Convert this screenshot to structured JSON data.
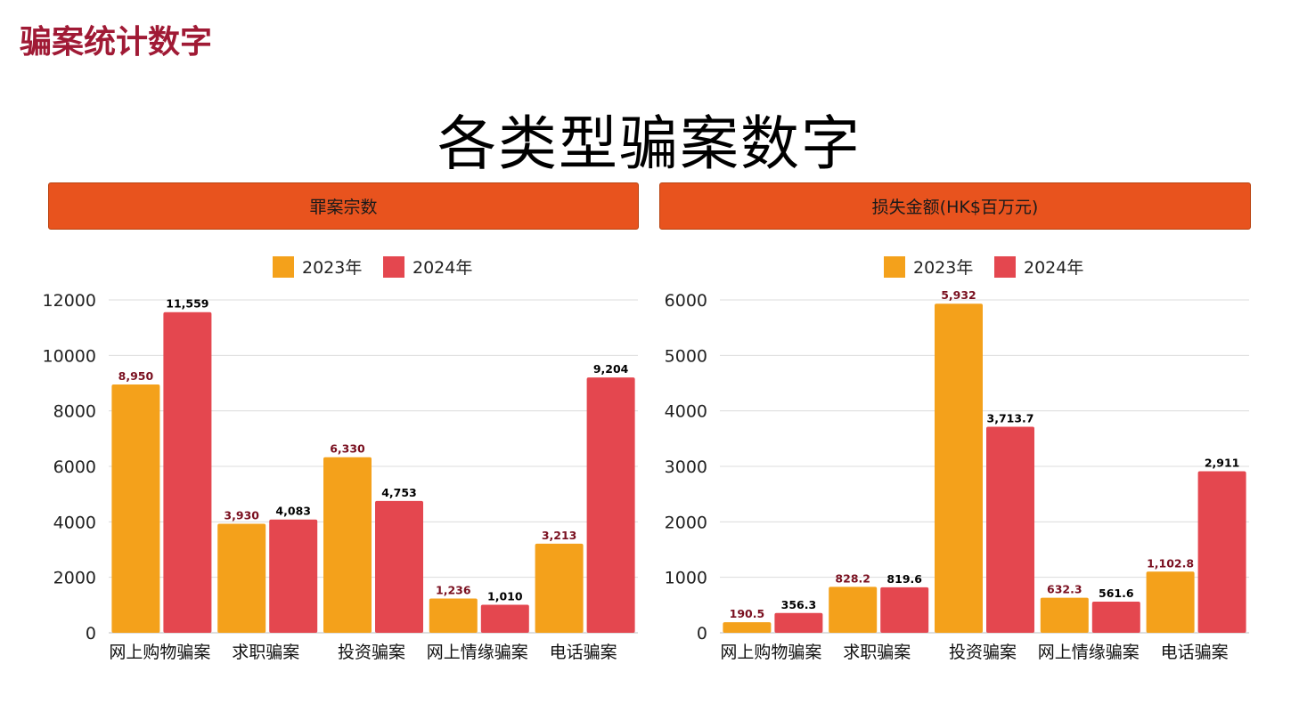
{
  "page": {
    "section_title": "骗案统计数字",
    "main_title": "各类型骗案数字"
  },
  "colors": {
    "header_bg": "#e8531e",
    "series_2023": "#f4a11b",
    "series_2024": "#e4474f",
    "label_2023": "#7a1020",
    "label_2024": "#000000",
    "section_title": "#a01a35"
  },
  "chart_data": [
    {
      "type": "bar",
      "title": "罪案宗数",
      "categories": [
        "网上购物骗案",
        "求职骗案",
        "投资骗案",
        "网上情缘骗案",
        "电话骗案"
      ],
      "series": [
        {
          "name": "2023年",
          "values": [
            8950,
            3930,
            6330,
            1236,
            3213
          ],
          "labels": [
            "8,950",
            "3,930",
            "6,330",
            "1,236",
            "3,213"
          ]
        },
        {
          "name": "2024年",
          "values": [
            11559,
            4083,
            4753,
            1010,
            9204
          ],
          "labels": [
            "11,559",
            "4,083",
            "4,753",
            "1,010",
            "9,204"
          ]
        }
      ],
      "ylim": [
        0,
        12000
      ],
      "yticks": [
        0,
        2000,
        4000,
        6000,
        8000,
        10000,
        12000
      ],
      "grid": true,
      "legend": "top-center"
    },
    {
      "type": "bar",
      "title": "损失金额(HK$百万元)",
      "categories": [
        "网上购物骗案",
        "求职骗案",
        "投资骗案",
        "网上情缘骗案",
        "电话骗案"
      ],
      "series": [
        {
          "name": "2023年",
          "values": [
            190.5,
            828.2,
            5932,
            632.3,
            1102.8
          ],
          "labels": [
            "190.5",
            "828.2",
            "5,932",
            "632.3",
            "1,102.8"
          ]
        },
        {
          "name": "2024年",
          "values": [
            356.3,
            819.6,
            3713.7,
            561.6,
            2911
          ],
          "labels": [
            "356.3",
            "819.6",
            "3,713.7",
            "561.6",
            "2,911"
          ]
        }
      ],
      "ylim": [
        0,
        6000
      ],
      "yticks": [
        0,
        1000,
        2000,
        3000,
        4000,
        5000,
        6000
      ],
      "grid": true,
      "legend": "top-center"
    }
  ]
}
